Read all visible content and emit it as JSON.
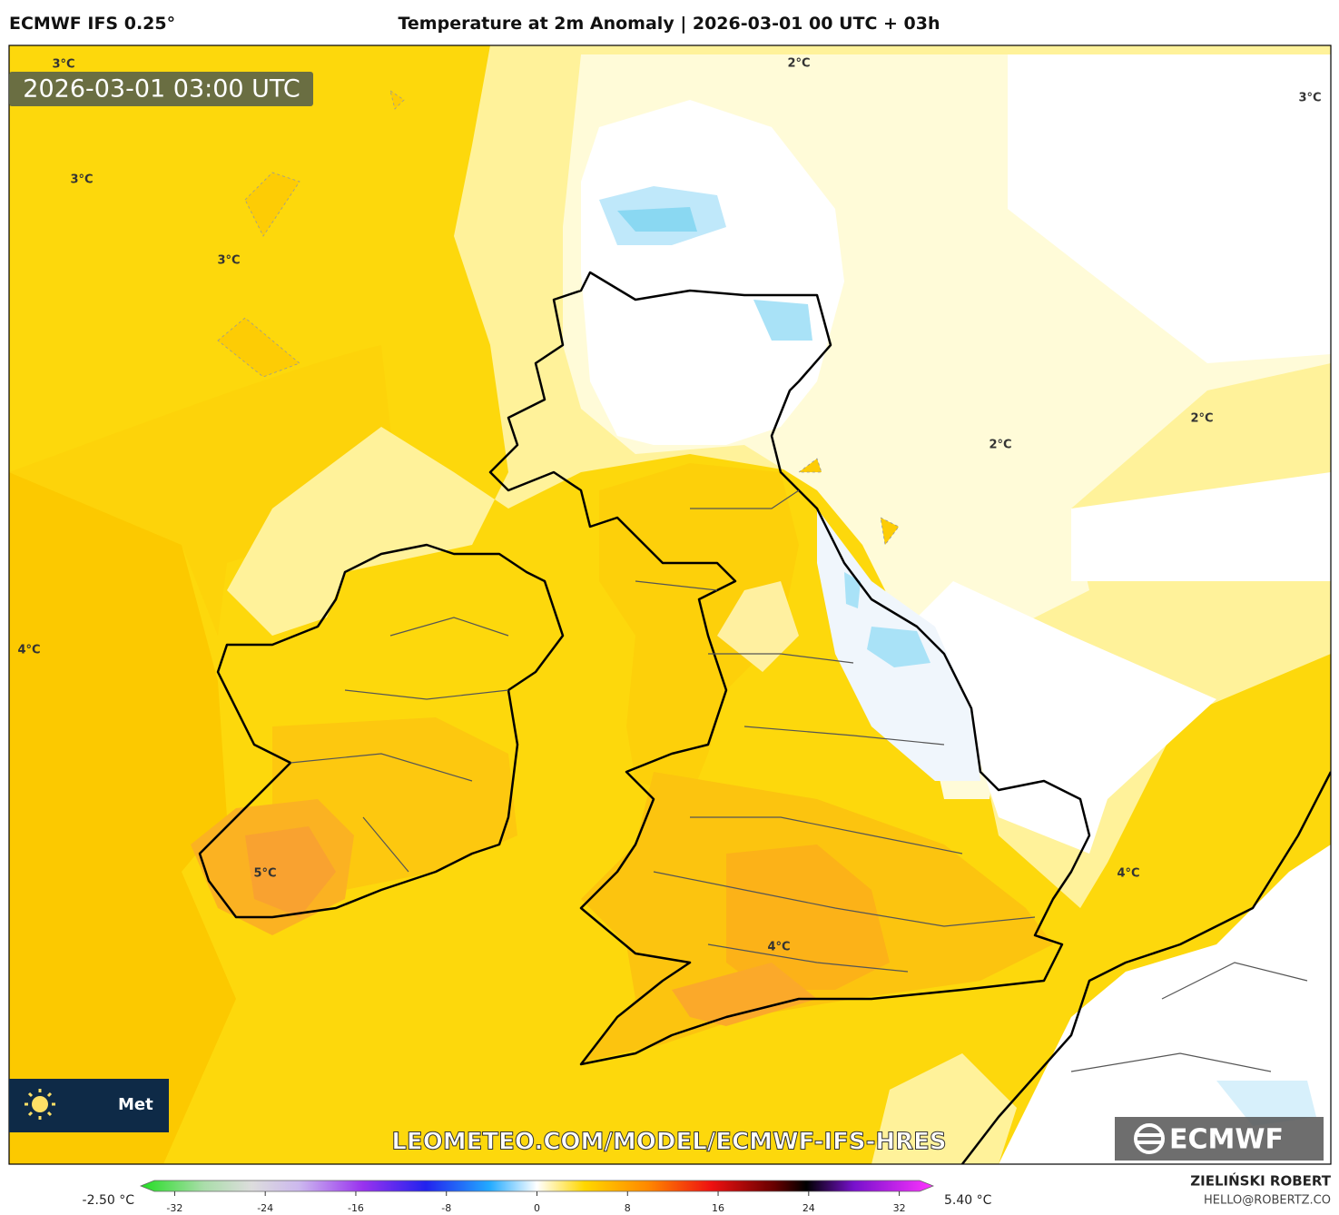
{
  "header": {
    "model": "ECMWF IFS 0.25°",
    "title": "Temperature at 2m Anomaly | 2026-03-01 00 UTC + 03h"
  },
  "map": {
    "valid_time": "2026-03-01 03:00 UTC",
    "contour_labels": [
      "3°C",
      "3°C",
      "3°C",
      "2°C",
      "3°C",
      "4°C",
      "2°C",
      "2°C",
      "5°C",
      "4°C",
      "4°C"
    ],
    "watermark": "LEOMETEO.COM/MODEL/ECMWF-IFS-HRES",
    "logo": "ECMWF",
    "badge": "Met"
  },
  "colorbar": {
    "min_label": "-2.50 °C",
    "max_label": "5.40 °C",
    "range": [
      -35,
      35
    ],
    "ticks": [
      -32,
      -24,
      -16,
      -8,
      0,
      8,
      16,
      24,
      32
    ]
  },
  "credits": {
    "author": "ZIELIŃSKI ROBERT",
    "contact": "HELLO@ROBERTZ.CO"
  }
}
